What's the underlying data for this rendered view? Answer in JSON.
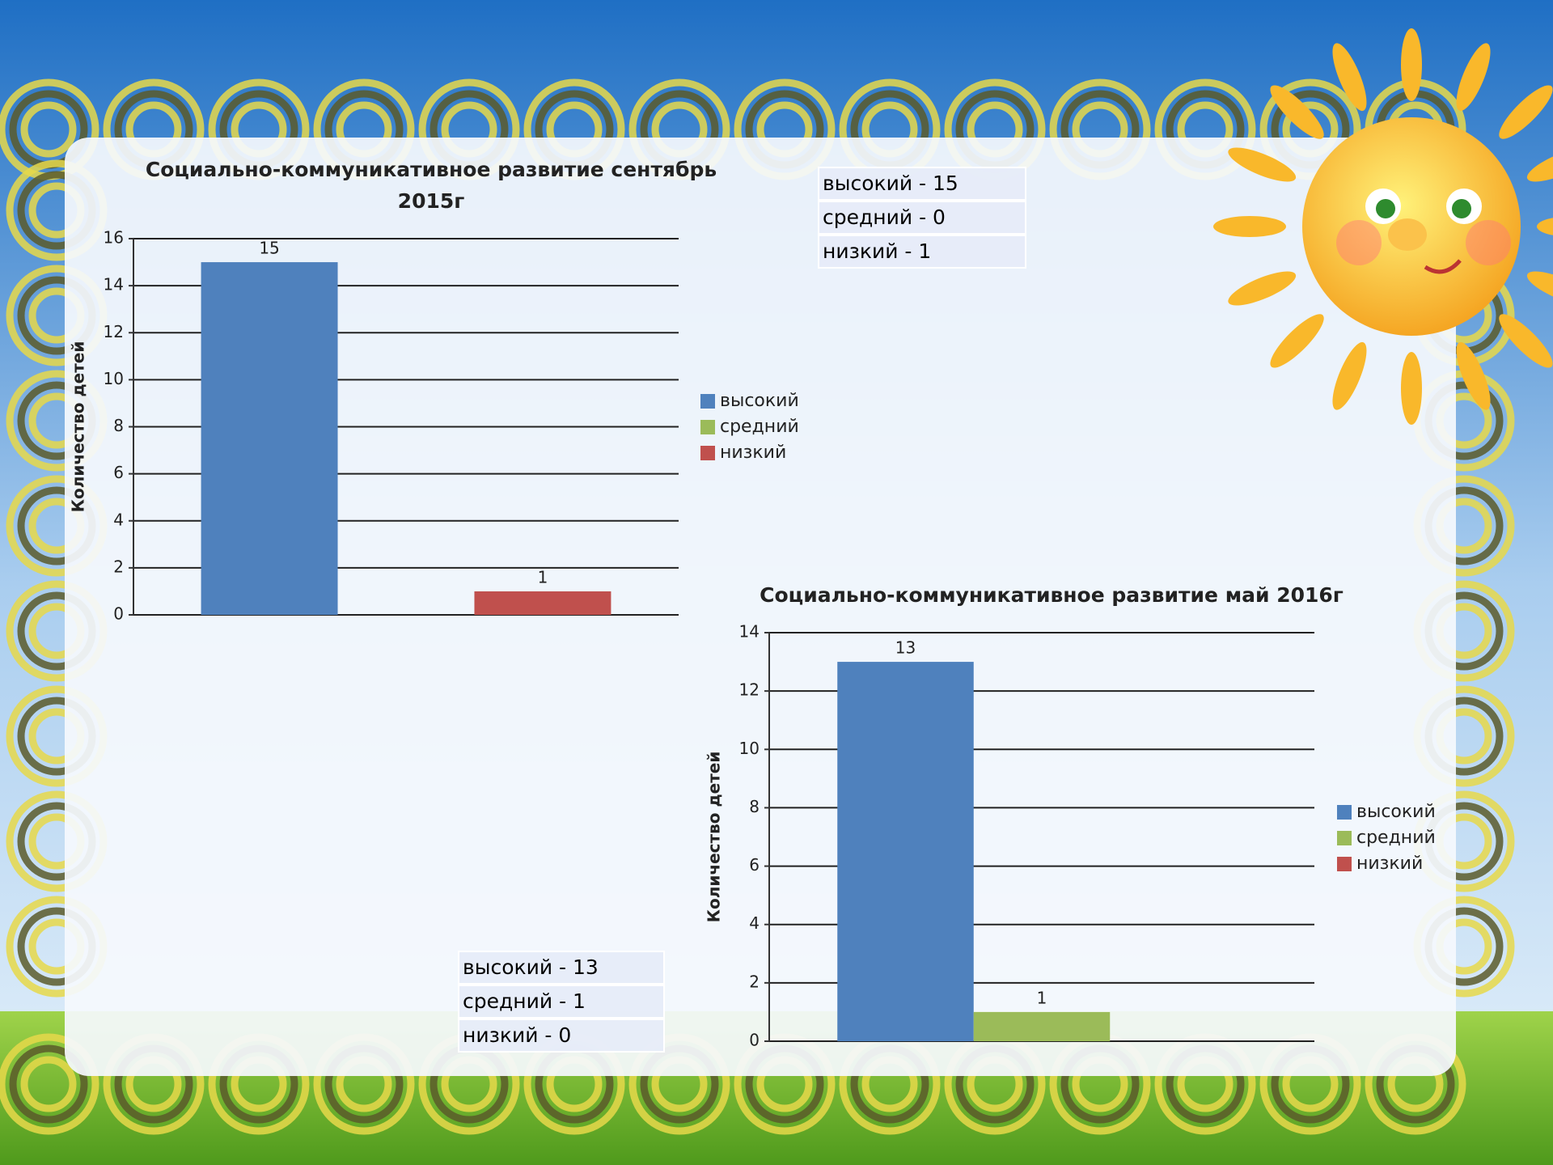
{
  "chart_data": [
    {
      "type": "bar",
      "title": "Социально-коммуникативное развитие сентябрь 2015г",
      "y_label": "Количество детей",
      "categories": [
        null
      ],
      "series": [
        {
          "name": "высокий",
          "color": "#4f81bd",
          "values": [
            15
          ]
        },
        {
          "name": "средний",
          "color": "#9bbb59",
          "values": [
            0
          ]
        },
        {
          "name": "низкий",
          "color": "#c0504d",
          "values": [
            1
          ]
        }
      ],
      "ylim": [
        0,
        16
      ],
      "yticks": [
        0,
        2,
        4,
        6,
        8,
        10,
        12,
        14,
        16
      ],
      "grid": true,
      "legend": "right"
    },
    {
      "type": "bar",
      "title": "Социально-коммуникативное развитие май 2016г",
      "y_label": "Количество детей",
      "categories": [
        null
      ],
      "series": [
        {
          "name": "высокий",
          "color": "#4f81bd",
          "values": [
            13
          ]
        },
        {
          "name": "средний",
          "color": "#9bbb59",
          "values": [
            1
          ]
        },
        {
          "name": "низкий",
          "color": "#c0504d",
          "values": [
            0
          ]
        }
      ],
      "ylim": [
        0,
        14
      ],
      "yticks": [
        0,
        2,
        4,
        6,
        8,
        10,
        12,
        14
      ],
      "grid": true,
      "legend": "right"
    }
  ],
  "tables": [
    {
      "rows": [
        "высокий - 15",
        "средний - 0",
        "низкий - 1"
      ]
    },
    {
      "rows": [
        "высокий - 13",
        "средний - 1",
        "низкий - 0"
      ]
    }
  ]
}
